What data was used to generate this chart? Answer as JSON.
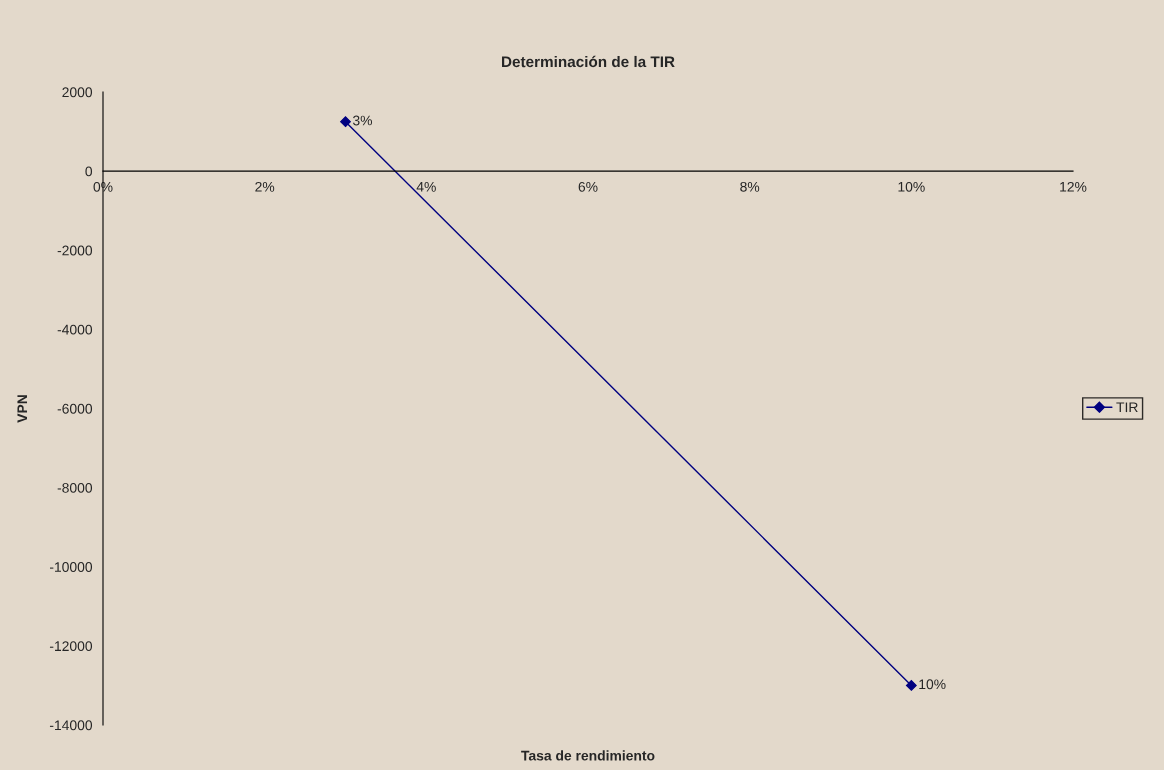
{
  "chart_data": {
    "type": "line",
    "title": "Determinación de la TIR",
    "xlabel": "Tasa de rendimiento",
    "ylabel": "VPN",
    "x": [
      0.03,
      0.1
    ],
    "series": [
      {
        "name": "TIR",
        "color": "#000080",
        "values": [
          1250,
          -13000
        ]
      }
    ],
    "annotations": [
      {
        "text": "3%",
        "x": 0.03,
        "y": 1250
      },
      {
        "text": "10%",
        "x": 0.1,
        "y": -13000
      }
    ],
    "xlim": [
      0,
      0.12
    ],
    "xticks": [
      {
        "value": 0,
        "label": "0%"
      },
      {
        "value": 0.02,
        "label": "2%"
      },
      {
        "value": 0.04,
        "label": "4%"
      },
      {
        "value": 0.06,
        "label": "6%"
      },
      {
        "value": 0.08,
        "label": "8%"
      },
      {
        "value": 0.1,
        "label": "10%"
      },
      {
        "value": 0.12,
        "label": "12%"
      }
    ],
    "ylim": [
      -14000,
      2000
    ],
    "yticks": [
      -14000,
      -12000,
      -10000,
      -8000,
      -6000,
      -4000,
      -2000,
      0,
      2000
    ],
    "marker": "diamond",
    "line_style": "solid",
    "legend": "right",
    "grid": false
  }
}
